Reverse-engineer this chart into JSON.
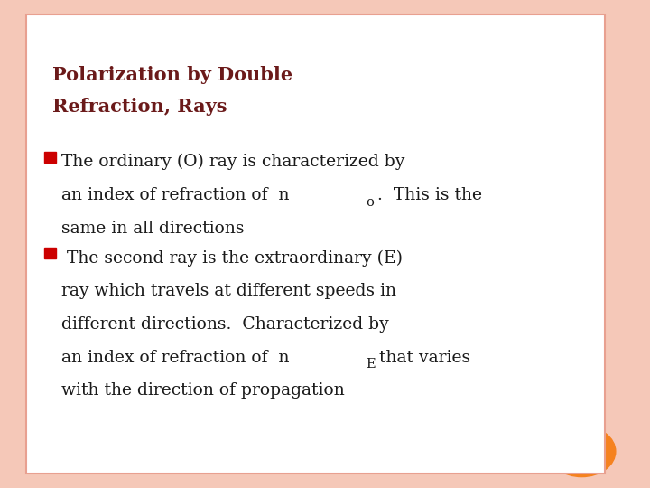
{
  "title_line1": "Polarization by Double",
  "title_line2": "Refraction, Rays",
  "title_color": "#6B1A1A",
  "bg_color": "#FFFFFF",
  "border_color": "#E8A090",
  "slide_bg": "#F5C8B8",
  "bullet_color": "#CC0000",
  "text_color": "#1A1A1A",
  "bullet1_line1": "The ordinary (O) ray is characterized by",
  "bullet1_line2a": "an index of refraction of  n",
  "bullet1_sub": "o",
  "bullet1_line2b": ".  This is the",
  "bullet1_line3": "same in all directions",
  "bullet2_line1": " The second ray is the extraordinary (E)",
  "bullet2_line2": "ray which travels at different speeds in",
  "bullet2_line3": "different directions.  Characterized by",
  "bullet2_line4a": "an index of refraction of  n",
  "bullet2_sub": "E",
  "bullet2_line4b": "that varies",
  "bullet2_line5": "with the direction of propagation",
  "orange_color": "#F5821F",
  "font_family": "serif"
}
